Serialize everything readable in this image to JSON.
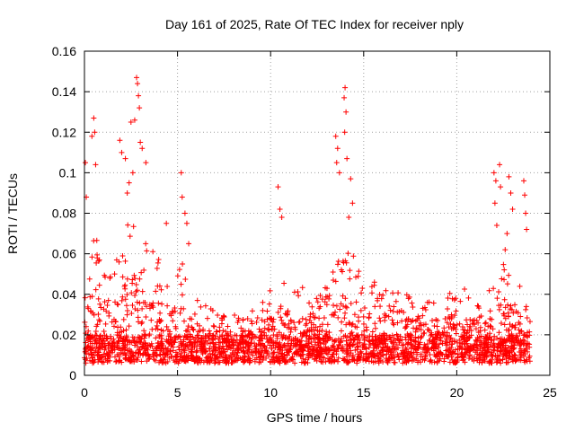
{
  "chart_data": {
    "type": "scatter",
    "title": "Day 161 of 2025, Rate Of TEC Index for receiver nply",
    "xlabel": "GPS time / hours",
    "ylabel": "ROTI / TECUs",
    "xlim": [
      0,
      25
    ],
    "ylim": [
      0,
      0.16
    ],
    "xticks": [
      0,
      5,
      10,
      15,
      20,
      25
    ],
    "yticks": [
      0,
      0.02,
      0.04,
      0.06,
      0.08,
      0.1,
      0.12,
      0.14,
      0.16
    ],
    "ytick_labels": [
      "0",
      "0.02",
      "0.04",
      "0.06",
      "0.08",
      "0.1",
      "0.12",
      "0.14",
      "0.16"
    ],
    "grid": true,
    "marker": "plus",
    "color": "#ff0000",
    "x_data_range": [
      0,
      24
    ],
    "envelope": {
      "x": [
        0,
        0.3,
        0.6,
        1,
        1.5,
        2,
        2.5,
        2.8,
        3.2,
        3.8,
        4.5,
        5,
        5.3,
        5.8,
        6.5,
        7.5,
        8.5,
        9.5,
        10,
        10.5,
        11.5,
        12.5,
        13.5,
        14,
        14.5,
        15,
        16,
        17,
        18,
        19,
        20,
        21,
        22,
        22.5,
        23,
        23.5,
        24
      ],
      "upper": [
        0.04,
        0.06,
        0.07,
        0.05,
        0.05,
        0.07,
        0.08,
        0.08,
        0.07,
        0.06,
        0.05,
        0.05,
        0.06,
        0.04,
        0.035,
        0.03,
        0.03,
        0.035,
        0.045,
        0.05,
        0.045,
        0.04,
        0.055,
        0.065,
        0.06,
        0.05,
        0.045,
        0.04,
        0.04,
        0.04,
        0.045,
        0.04,
        0.05,
        0.06,
        0.05,
        0.045,
        0.025
      ],
      "lower": 0.006
    },
    "highlights": [
      {
        "x": 0.5,
        "y": 0.127
      },
      {
        "x": 0.55,
        "y": 0.12
      },
      {
        "x": 0.05,
        "y": 0.105
      },
      {
        "x": 0.6,
        "y": 0.104
      },
      {
        "x": 0.4,
        "y": 0.118
      },
      {
        "x": 0.1,
        "y": 0.088
      },
      {
        "x": 1.9,
        "y": 0.116
      },
      {
        "x": 2.0,
        "y": 0.11
      },
      {
        "x": 2.2,
        "y": 0.107
      },
      {
        "x": 2.5,
        "y": 0.125
      },
      {
        "x": 2.7,
        "y": 0.126
      },
      {
        "x": 2.8,
        "y": 0.147
      },
      {
        "x": 2.85,
        "y": 0.144
      },
      {
        "x": 2.9,
        "y": 0.138
      },
      {
        "x": 2.95,
        "y": 0.132
      },
      {
        "x": 3.0,
        "y": 0.115
      },
      {
        "x": 3.1,
        "y": 0.112
      },
      {
        "x": 2.6,
        "y": 0.1
      },
      {
        "x": 2.4,
        "y": 0.095
      },
      {
        "x": 2.3,
        "y": 0.09
      },
      {
        "x": 3.3,
        "y": 0.105
      },
      {
        "x": 5.2,
        "y": 0.1
      },
      {
        "x": 5.25,
        "y": 0.088
      },
      {
        "x": 5.4,
        "y": 0.08
      },
      {
        "x": 5.5,
        "y": 0.075
      },
      {
        "x": 5.6,
        "y": 0.065
      },
      {
        "x": 4.4,
        "y": 0.075
      },
      {
        "x": 10.4,
        "y": 0.093
      },
      {
        "x": 10.5,
        "y": 0.082
      },
      {
        "x": 10.6,
        "y": 0.078
      },
      {
        "x": 13.5,
        "y": 0.118
      },
      {
        "x": 13.6,
        "y": 0.112
      },
      {
        "x": 13.55,
        "y": 0.105
      },
      {
        "x": 13.7,
        "y": 0.1
      },
      {
        "x": 14.0,
        "y": 0.142
      },
      {
        "x": 13.95,
        "y": 0.137
      },
      {
        "x": 14.05,
        "y": 0.13
      },
      {
        "x": 13.98,
        "y": 0.12
      },
      {
        "x": 14.1,
        "y": 0.107
      },
      {
        "x": 14.3,
        "y": 0.097
      },
      {
        "x": 14.4,
        "y": 0.085
      },
      {
        "x": 14.2,
        "y": 0.078
      },
      {
        "x": 22.0,
        "y": 0.1
      },
      {
        "x": 22.1,
        "y": 0.096
      },
      {
        "x": 22.3,
        "y": 0.104
      },
      {
        "x": 22.35,
        "y": 0.093
      },
      {
        "x": 22.05,
        "y": 0.085
      },
      {
        "x": 22.15,
        "y": 0.074
      },
      {
        "x": 22.8,
        "y": 0.098
      },
      {
        "x": 22.9,
        "y": 0.09
      },
      {
        "x": 23.0,
        "y": 0.082
      },
      {
        "x": 23.6,
        "y": 0.096
      },
      {
        "x": 23.65,
        "y": 0.089
      },
      {
        "x": 23.7,
        "y": 0.08
      },
      {
        "x": 23.75,
        "y": 0.072
      },
      {
        "x": 22.6,
        "y": 0.062
      },
      {
        "x": 22.7,
        "y": 0.07
      }
    ]
  }
}
